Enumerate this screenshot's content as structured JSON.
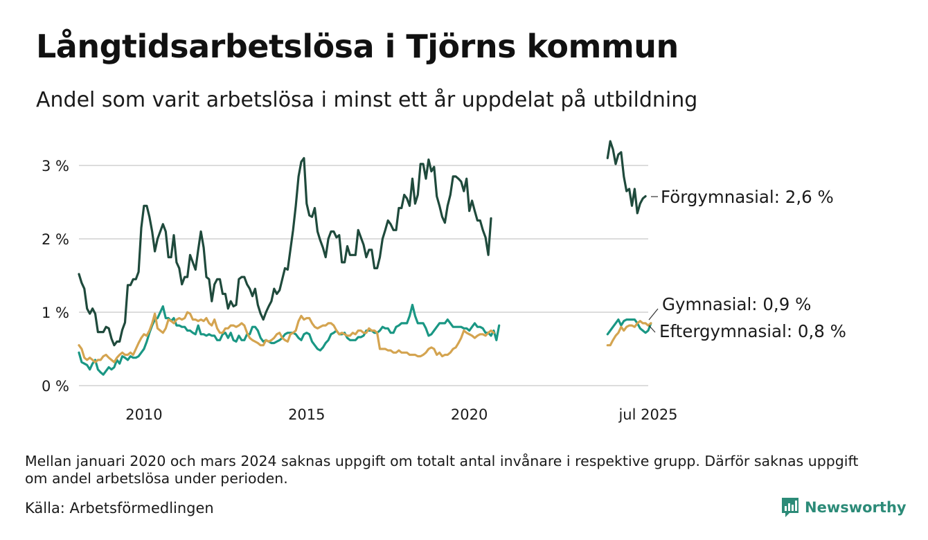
{
  "title": "Långtidsarbetslösa i Tjörns kommun",
  "subtitle": "Andel som varit arbetslösa i minst ett år uppdelat på utbildning",
  "note": "Mellan januari 2020 och mars 2024 saknas uppgift om totalt antal invånare i respektive grupp. Därför saknas uppgift om andel arbetslösa under perioden.",
  "source": "Källa: Arbetsförmedlingen",
  "brand": "Newsworthy",
  "colors": {
    "forgymnasial": "#1f4a3c",
    "gymnasial": "#1a9784",
    "eftergymnasial": "#d4a450",
    "grid": "#dcdcdc",
    "brand": "#2c8b78"
  },
  "chart_data": {
    "type": "line",
    "ylim": [
      0,
      3.4
    ],
    "yticks": [
      {
        "value": 0,
        "label": "0 %"
      },
      {
        "value": 1,
        "label": "1 %"
      },
      {
        "value": 2,
        "label": "2 %"
      },
      {
        "value": 3,
        "label": "3 %"
      }
    ],
    "xticks": [
      {
        "year": 2010,
        "month": 1,
        "label": "2010"
      },
      {
        "year": 2015,
        "month": 1,
        "label": "2015"
      },
      {
        "year": 2020,
        "month": 1,
        "label": "2020"
      },
      {
        "year": 2025,
        "month": 7,
        "label": "jul 2025"
      }
    ],
    "series": [
      {
        "name": "Förgymnasial",
        "end_label": "Förgymnasial: 2,6 %",
        "color": "#1f4a3c",
        "segments": [
          {
            "start": "2008-01",
            "values": [
              1.52,
              1.4,
              1.32,
              1.05,
              0.98,
              1.05,
              0.98,
              0.73,
              0.73,
              0.73,
              0.8,
              0.78,
              0.64,
              0.55,
              0.6,
              0.6,
              0.76,
              0.86,
              1.37,
              1.37,
              1.45,
              1.45,
              1.55,
              2.15,
              2.45,
              2.45,
              2.3,
              2.1,
              1.83,
              2.0,
              2.1,
              2.2,
              2.1,
              1.75,
              1.75,
              2.05,
              1.68,
              1.6,
              1.38,
              1.48,
              1.48,
              1.78,
              1.68,
              1.58,
              1.85,
              2.1,
              1.88,
              1.48,
              1.45,
              1.15,
              1.38,
              1.45,
              1.45,
              1.25,
              1.25,
              1.05,
              1.15,
              1.08,
              1.1,
              1.45,
              1.48,
              1.48,
              1.38,
              1.32,
              1.22,
              1.32,
              1.1,
              0.98,
              0.9,
              1.0,
              1.08,
              1.15,
              1.32,
              1.25,
              1.3,
              1.45,
              1.6,
              1.58,
              1.85,
              2.12,
              2.45,
              2.85,
              3.05,
              3.1,
              2.48,
              2.32,
              2.3,
              2.42,
              2.1,
              1.98,
              1.88,
              1.75,
              2.0,
              2.1,
              2.1,
              2.02,
              2.05,
              1.68,
              1.68,
              1.9,
              1.78,
              1.78,
              1.78,
              2.12,
              2.02,
              1.92,
              1.75,
              1.85,
              1.85,
              1.6,
              1.6,
              1.75,
              2.0,
              2.12,
              2.25,
              2.2,
              2.12,
              2.12,
              2.42,
              2.42,
              2.6,
              2.55,
              2.45,
              2.82,
              2.48,
              2.6,
              3.02,
              3.02,
              2.82,
              3.08,
              2.92,
              2.98,
              2.58,
              2.45,
              2.3,
              2.22,
              2.45,
              2.6,
              2.85,
              2.85,
              2.82,
              2.78,
              2.65,
              2.82,
              2.38,
              2.52,
              2.38,
              2.25,
              2.25,
              2.12,
              2.02,
              1.78,
              2.28
            ]
          },
          {
            "start": "2024-04",
            "values": [
              3.1,
              3.33,
              3.22,
              3.02,
              3.15,
              3.18,
              2.85,
              2.65,
              2.68,
              2.45,
              2.68,
              2.35,
              2.48,
              2.55,
              2.58
            ]
          }
        ]
      },
      {
        "name": "Gymnasial",
        "end_label": "Gymnasial: 0,9 %",
        "color": "#1a9784",
        "segments": [
          {
            "start": "2008-01",
            "values": [
              0.45,
              0.32,
              0.3,
              0.28,
              0.22,
              0.3,
              0.35,
              0.22,
              0.18,
              0.15,
              0.2,
              0.25,
              0.22,
              0.25,
              0.35,
              0.3,
              0.4,
              0.38,
              0.35,
              0.4,
              0.38,
              0.38,
              0.4,
              0.45,
              0.5,
              0.6,
              0.72,
              0.82,
              0.9,
              0.92,
              1.0,
              1.08,
              0.92,
              0.92,
              0.88,
              0.92,
              0.82,
              0.82,
              0.8,
              0.8,
              0.75,
              0.75,
              0.72,
              0.7,
              0.82,
              0.7,
              0.7,
              0.68,
              0.7,
              0.68,
              0.68,
              0.62,
              0.62,
              0.7,
              0.72,
              0.65,
              0.72,
              0.62,
              0.6,
              0.68,
              0.62,
              0.62,
              0.7,
              0.7,
              0.8,
              0.8,
              0.75,
              0.65,
              0.6,
              0.62,
              0.6,
              0.58,
              0.58,
              0.6,
              0.62,
              0.65,
              0.7,
              0.72,
              0.72,
              0.72,
              0.7,
              0.65,
              0.62,
              0.7,
              0.72,
              0.7,
              0.6,
              0.55,
              0.5,
              0.48,
              0.52,
              0.58,
              0.62,
              0.7,
              0.72,
              0.75,
              0.7,
              0.7,
              0.72,
              0.65,
              0.62,
              0.62,
              0.62,
              0.66,
              0.66,
              0.68,
              0.75,
              0.75,
              0.75,
              0.72,
              0.72,
              0.75,
              0.8,
              0.78,
              0.78,
              0.72,
              0.72,
              0.8,
              0.82,
              0.85,
              0.85,
              0.85,
              0.95,
              1.1,
              0.95,
              0.85,
              0.85,
              0.85,
              0.78,
              0.68,
              0.7,
              0.75,
              0.8,
              0.85,
              0.85,
              0.85,
              0.9,
              0.85,
              0.8,
              0.8,
              0.8,
              0.8,
              0.78,
              0.78,
              0.75,
              0.8,
              0.85,
              0.8,
              0.8,
              0.78,
              0.72,
              0.72,
              0.68,
              0.75,
              0.62,
              0.82
            ]
          },
          {
            "start": "2024-04",
            "values": [
              0.7,
              0.75,
              0.8,
              0.85,
              0.9,
              0.82,
              0.88,
              0.9,
              0.9,
              0.9,
              0.9,
              0.85,
              0.78,
              0.75,
              0.72,
              0.75,
              0.85
            ]
          }
        ]
      },
      {
        "name": "Eftergymnasial",
        "end_label": "Eftergymnasial: 0,8 %",
        "color": "#d4a450",
        "segments": [
          {
            "start": "2008-01",
            "values": [
              0.55,
              0.5,
              0.38,
              0.35,
              0.38,
              0.35,
              0.32,
              0.35,
              0.35,
              0.4,
              0.42,
              0.38,
              0.35,
              0.32,
              0.38,
              0.42,
              0.45,
              0.42,
              0.42,
              0.45,
              0.42,
              0.5,
              0.58,
              0.65,
              0.7,
              0.68,
              0.75,
              0.85,
              0.98,
              0.78,
              0.75,
              0.72,
              0.78,
              0.9,
              0.88,
              0.85,
              0.9,
              0.92,
              0.9,
              0.92,
              1.0,
              0.98,
              0.9,
              0.9,
              0.88,
              0.9,
              0.88,
              0.92,
              0.85,
              0.82,
              0.9,
              0.78,
              0.72,
              0.72,
              0.78,
              0.78,
              0.82,
              0.82,
              0.8,
              0.82,
              0.85,
              0.82,
              0.72,
              0.65,
              0.62,
              0.6,
              0.58,
              0.55,
              0.55,
              0.62,
              0.6,
              0.62,
              0.65,
              0.7,
              0.72,
              0.65,
              0.62,
              0.6,
              0.7,
              0.72,
              0.75,
              0.88,
              0.95,
              0.9,
              0.92,
              0.92,
              0.85,
              0.8,
              0.78,
              0.8,
              0.82,
              0.82,
              0.85,
              0.85,
              0.82,
              0.75,
              0.7,
              0.72,
              0.7,
              0.68,
              0.68,
              0.72,
              0.7,
              0.75,
              0.75,
              0.72,
              0.72,
              0.78,
              0.75,
              0.75,
              0.72,
              0.5,
              0.5,
              0.5,
              0.48,
              0.48,
              0.45,
              0.45,
              0.48,
              0.45,
              0.45,
              0.45,
              0.42,
              0.42,
              0.42,
              0.4,
              0.4,
              0.42,
              0.45,
              0.5,
              0.52,
              0.5,
              0.42,
              0.45,
              0.4,
              0.42,
              0.42,
              0.45,
              0.5,
              0.52,
              0.58,
              0.65,
              0.75,
              0.72,
              0.7,
              0.68,
              0.65,
              0.68,
              0.7,
              0.7,
              0.68,
              0.72,
              0.75,
              0.72
            ]
          },
          {
            "start": "2024-04",
            "values": [
              0.55,
              0.55,
              0.62,
              0.68,
              0.72,
              0.8,
              0.75,
              0.8,
              0.82,
              0.82,
              0.8,
              0.85,
              0.88,
              0.85,
              0.85,
              0.82,
              0.85
            ]
          }
        ]
      }
    ]
  }
}
